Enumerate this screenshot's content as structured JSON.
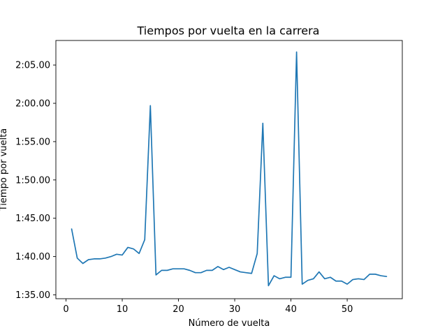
{
  "chart_data": {
    "type": "line",
    "title": "Tiempos por vuelta en la carrera",
    "xlabel": "Número de vuelta",
    "ylabel": "Tiempo por vuelta",
    "xlim": [
      -1.8,
      59.8
    ],
    "ylim": [
      94.5,
      128.2
    ],
    "x_ticks": [
      0,
      10,
      20,
      30,
      40,
      50
    ],
    "y_ticks": [
      {
        "value": 95,
        "label": "1:35.00"
      },
      {
        "value": 100,
        "label": "1:40.00"
      },
      {
        "value": 105,
        "label": "1:45.00"
      },
      {
        "value": 110,
        "label": "1:50.00"
      },
      {
        "value": 115,
        "label": "1:55.00"
      },
      {
        "value": 120,
        "label": "2:00.00"
      },
      {
        "value": 125,
        "label": "2:05.00"
      }
    ],
    "grid": false,
    "legend": "none",
    "color": "#1f77b4",
    "series": [
      {
        "x": [
          1,
          2,
          3,
          4,
          5,
          6,
          7,
          8,
          9,
          10,
          11,
          12,
          13,
          14,
          15,
          16,
          17,
          18,
          19,
          20,
          21,
          22,
          23,
          24,
          25,
          26,
          27,
          28,
          29,
          30,
          31,
          32,
          33,
          34,
          35,
          36,
          37,
          38,
          39,
          40,
          41,
          42,
          43,
          44,
          45,
          46,
          47,
          48,
          49,
          50,
          51,
          52,
          53,
          54,
          55,
          56,
          57
        ],
        "values": [
          103.6,
          99.8,
          99.1,
          99.6,
          99.7,
          99.7,
          99.8,
          100.0,
          100.3,
          100.2,
          101.2,
          101.0,
          100.4,
          102.2,
          119.7,
          97.6,
          98.2,
          98.2,
          98.4,
          98.4,
          98.4,
          98.2,
          97.9,
          97.9,
          98.2,
          98.2,
          98.7,
          98.3,
          98.6,
          98.3,
          98.0,
          97.9,
          97.8,
          100.4,
          117.4,
          96.2,
          97.5,
          97.1,
          97.3,
          97.3,
          126.7,
          96.4,
          96.9,
          97.1,
          98.0,
          97.1,
          97.3,
          96.8,
          96.8,
          96.4,
          97.0,
          97.1,
          97.0,
          97.7,
          97.7,
          97.5,
          97.4
        ]
      }
    ]
  }
}
